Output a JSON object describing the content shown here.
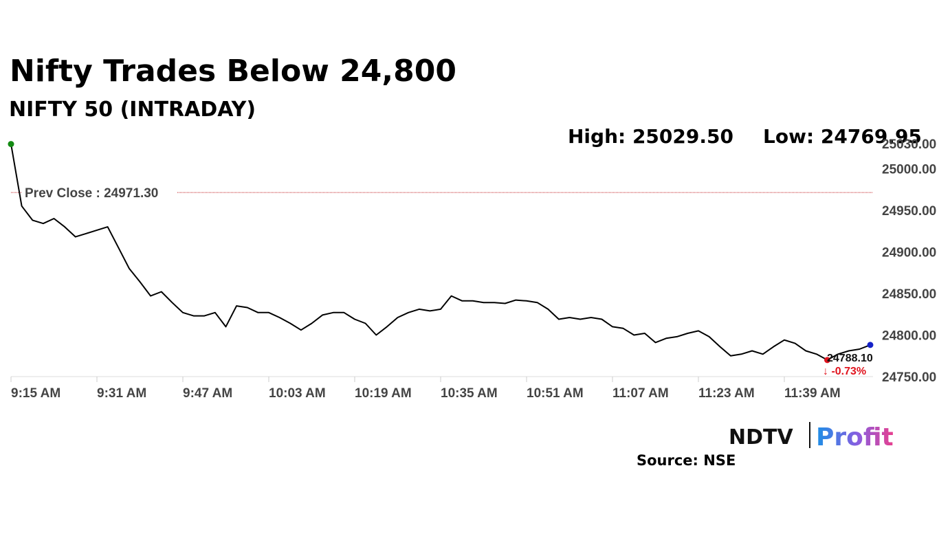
{
  "chart_data": {
    "type": "line",
    "title": "Nifty Trades Below 24,800",
    "subtitle": "NIFTY 50 (INTRADAY)",
    "high_label": "High: 25029.50",
    "low_label": "Low: 24769.95",
    "prev_close": 24971.3,
    "prev_close_label": "Prev Close : 24971.30",
    "last_label": "24788.10",
    "change_label": "↓ -0.73%",
    "source": "Source: NSE",
    "brand": [
      "NDTV",
      "Profit"
    ],
    "categories": [
      "9:15 AM",
      null,
      null,
      null,
      null,
      null,
      null,
      null,
      "9:31 AM",
      null,
      null,
      null,
      null,
      null,
      null,
      null,
      "9:47 AM",
      null,
      null,
      null,
      null,
      null,
      null,
      null,
      "10:03 AM",
      null,
      null,
      null,
      null,
      null,
      null,
      null,
      "10:19 AM",
      null,
      null,
      null,
      null,
      null,
      null,
      null,
      "10:35 AM",
      null,
      null,
      null,
      null,
      null,
      null,
      null,
      "10:51 AM",
      null,
      null,
      null,
      null,
      null,
      null,
      null,
      "11:07 AM",
      null,
      null,
      null,
      null,
      null,
      null,
      null,
      "11:23 AM",
      null,
      null,
      null,
      null,
      null,
      null,
      null,
      "11:39 AM",
      null,
      null,
      null,
      null,
      null,
      null,
      null,
      null
    ],
    "series": [
      {
        "color": "#000000",
        "values": [
          25029.5,
          24955,
          24938,
          24934,
          24940,
          24930,
          24918,
          24922,
          24926,
          24930,
          24905,
          24880,
          24864,
          24847,
          24852,
          24839,
          24827,
          24823,
          24823,
          24827,
          24810,
          24835,
          24833,
          24827,
          24827,
          24821,
          24814,
          24806,
          24814,
          24824,
          24827,
          24827,
          24819,
          24814,
          24800,
          24810,
          24821,
          24827,
          24831,
          24829,
          24831,
          24847,
          24841,
          24841,
          24839,
          24839,
          24838,
          24842,
          24841,
          24839,
          24831,
          24819,
          24821,
          24819,
          24821,
          24819,
          24810,
          24808,
          24800,
          24802,
          24791,
          24796,
          24798,
          24802,
          24805,
          24798,
          24786,
          24775,
          24777,
          24781,
          24777,
          24786,
          24794,
          24790,
          24781,
          24777,
          24769.95,
          24777,
          24781,
          24783,
          24788.1
        ]
      }
    ],
    "markers": {
      "high_color": "#138a13",
      "low_color": "#e0141e",
      "last_color": "#1522c8",
      "prev_close_color": "#c0181e"
    },
    "ylim": [
      24750,
      25030
    ],
    "yticks": [
      {
        "value": 24750,
        "label": "24750.00"
      },
      {
        "value": 24800,
        "label": "24800.00"
      },
      {
        "value": 24850,
        "label": "24850.00"
      },
      {
        "value": 24900,
        "label": "24900.00"
      },
      {
        "value": 24950,
        "label": "24950.00"
      },
      {
        "value": 25000,
        "label": "25000.00"
      },
      {
        "value": 25030,
        "label": "25030.00"
      }
    ]
  }
}
